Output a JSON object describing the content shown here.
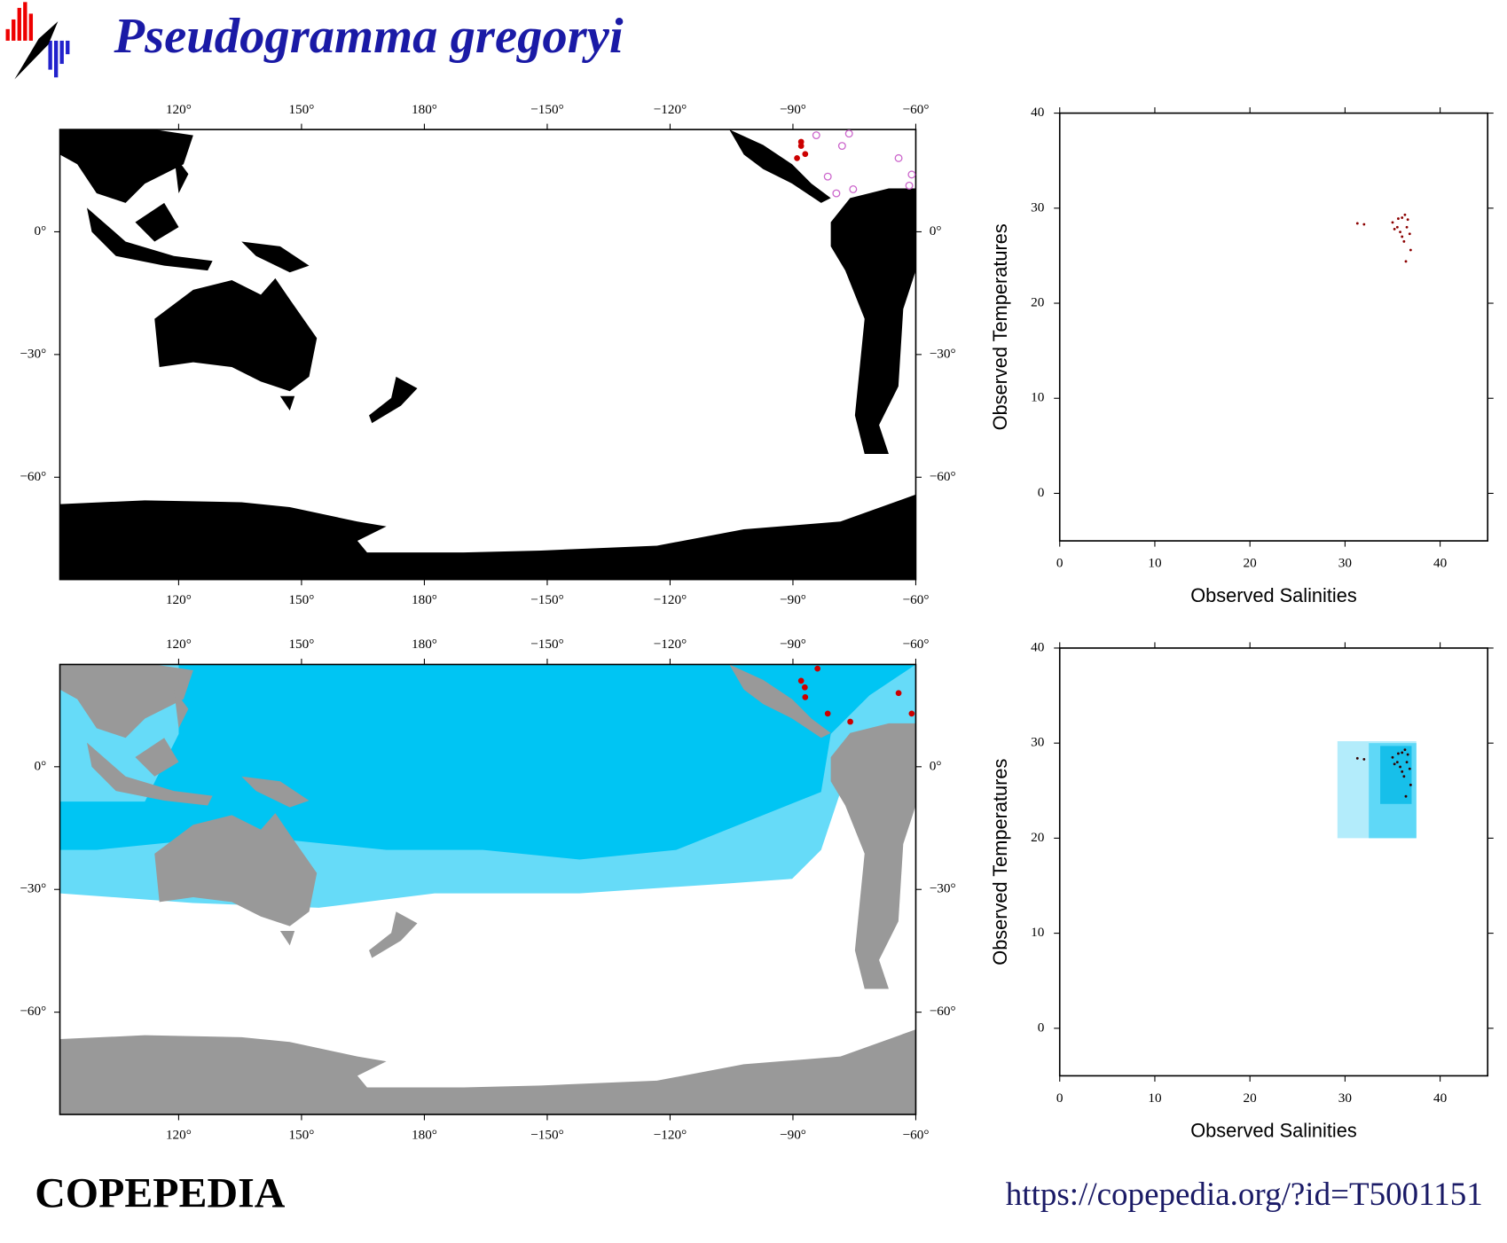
{
  "header": {
    "title": "Pseudogramma gregoryi"
  },
  "chart_data": [
    {
      "type": "map",
      "xlim": [
        91,
        300
      ],
      "ylim": [
        -85,
        25
      ],
      "xticks": [
        {
          "value": 120,
          "label": "120°"
        },
        {
          "value": 150,
          "label": "150°"
        },
        {
          "value": 180,
          "label": "180°"
        },
        {
          "value": 210,
          "label": "−150°"
        },
        {
          "value": 240,
          "label": "−120°"
        },
        {
          "value": 270,
          "label": "−90°"
        },
        {
          "value": 300,
          "label": "−60°"
        }
      ],
      "yticks": [
        {
          "value": -60,
          "label": "−60°"
        },
        {
          "value": -30,
          "label": "−30°"
        },
        {
          "value": 0,
          "label": "0°"
        }
      ],
      "land_color": "#000000",
      "series": [
        {
          "color": "#cc0000",
          "marker": "filled",
          "x": [
            272,
            273,
            272,
            271
          ],
          "values": [
            21,
            19,
            22,
            18
          ]
        },
        {
          "color": "#cc66cc",
          "marker": "open",
          "x": [
            283.7,
            278.5,
            295.8,
            299,
            284.7,
            280.6,
            275.7,
            282,
            298.4
          ],
          "values": [
            24,
            13.5,
            18,
            14,
            10.4,
            9.4,
            23.6,
            21,
            11.3
          ]
        }
      ]
    },
    {
      "type": "map",
      "xlim": [
        91,
        300
      ],
      "ylim": [
        -85,
        25
      ],
      "xticks": [
        {
          "value": 120,
          "label": "120°"
        },
        {
          "value": 150,
          "label": "150°"
        },
        {
          "value": 180,
          "label": "180°"
        },
        {
          "value": 210,
          "label": "−150°"
        },
        {
          "value": 240,
          "label": "−120°"
        },
        {
          "value": 270,
          "label": "−90°"
        },
        {
          "value": 300,
          "label": "−60°"
        }
      ],
      "yticks": [
        {
          "value": -60,
          "label": "−60°"
        },
        {
          "value": -30,
          "label": "−30°"
        },
        {
          "value": 0,
          "label": "0°"
        }
      ],
      "land_color": "#999999",
      "series": [
        {
          "color": "#cc0000",
          "marker": "filled",
          "x": [
            272.9,
            278.5,
            284,
            295.8,
            299,
            276,
            272,
            273
          ],
          "values": [
            19.4,
            13,
            11,
            18,
            13,
            24,
            21,
            17
          ]
        }
      ]
    },
    {
      "type": "scatter",
      "xlabel": "Observed Salinities",
      "ylabel": "Observed Temperatures",
      "xlim": [
        0,
        45
      ],
      "ylim": [
        -5,
        40
      ],
      "xticks": [
        0,
        10,
        20,
        30,
        40
      ],
      "yticks": [
        0,
        10,
        20,
        30,
        40
      ],
      "series": [
        {
          "color": "#8b0000",
          "x": [
            35,
            35.5,
            36,
            36.3,
            36.5,
            35.8,
            36.2,
            36.8,
            36.4,
            32,
            31.3,
            35.2,
            36.6,
            35.6,
            36.9,
            36
          ],
          "values": [
            28.5,
            28,
            29,
            29.3,
            28,
            27.5,
            26.5,
            27.3,
            24.4,
            28.3,
            28.4,
            27.8,
            28.8,
            28.9,
            25.6,
            27
          ]
        }
      ]
    },
    {
      "type": "scatter",
      "xlabel": "Observed Salinities",
      "ylabel": "Observed Temperatures",
      "xlim": [
        0,
        45
      ],
      "ylim": [
        -5,
        40
      ],
      "xticks": [
        0,
        10,
        20,
        30,
        40
      ],
      "yticks": [
        0,
        10,
        20,
        30,
        40
      ],
      "boxes": [
        {
          "color": "#b3ecfb",
          "x": [
            29.2,
            37.5
          ],
          "y": [
            20,
            30.2
          ]
        },
        {
          "color": "#5fd8f7",
          "x": [
            32.5,
            37.5
          ],
          "y": [
            20,
            30
          ]
        },
        {
          "color": "#17bfea",
          "x": [
            33.7,
            37
          ],
          "y": [
            23.6,
            29.7
          ]
        }
      ],
      "series": [
        {
          "color": "#330000",
          "x": [
            35,
            35.5,
            36,
            36.3,
            36.5,
            35.8,
            36.2,
            36.8,
            36.4,
            32,
            31.3,
            35.2,
            36.6,
            35.6,
            36.9,
            36
          ],
          "values": [
            28.5,
            28,
            29,
            29.3,
            28,
            27.5,
            26.5,
            27.3,
            24.4,
            28.3,
            28.4,
            27.8,
            28.8,
            28.9,
            25.6,
            27
          ]
        }
      ]
    }
  ],
  "footer": {
    "brand": "COPEPEDIA",
    "url": "https://copepedia.org/?id=T5001151"
  }
}
